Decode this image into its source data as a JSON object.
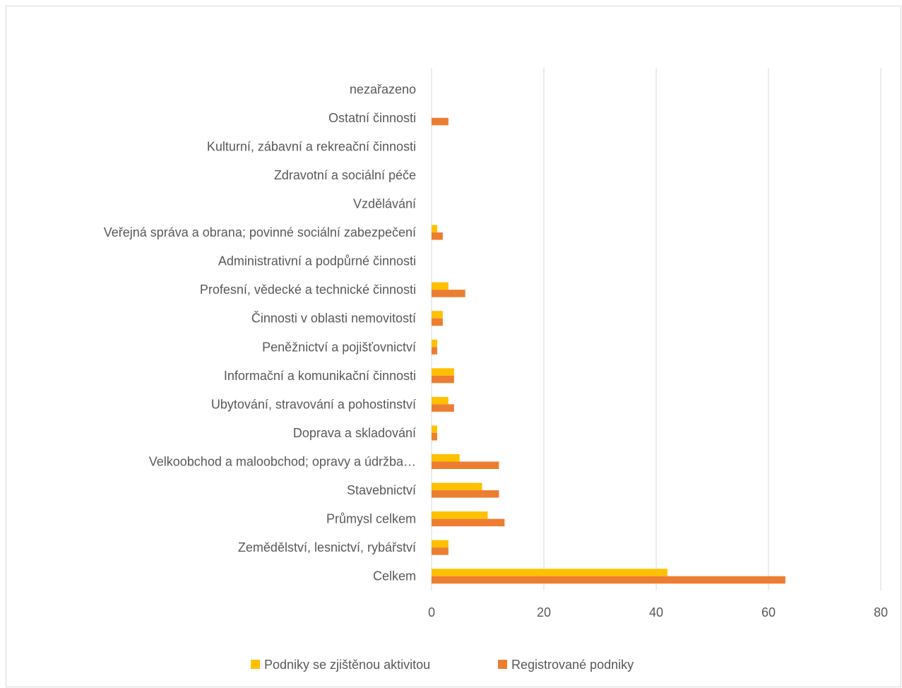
{
  "chart_data": {
    "type": "bar",
    "orientation": "horizontal",
    "categories": [
      "Celkem",
      "Zemědělství, lesnictví, rybářství",
      "Průmysl celkem",
      "Stavebnictví",
      "Velkoobchod a maloobchod; opravy a údržba…",
      "Doprava a skladování",
      "Ubytování, stravování a pohostinství",
      "Informační a komunikační činnosti",
      "Peněžnictví a pojišťovnictví",
      "Činnosti v oblasti nemovitostí",
      "Profesní, vědecké a technické činnosti",
      "Administrativní a podpůrné činnosti",
      "Veřejná správa a obrana; povinné sociální zabezpečení",
      "Vzdělávání",
      "Zdravotní a sociální péče",
      "Kulturní, zábavní a rekreační činnosti",
      "Ostatní činnosti",
      "nezařazeno"
    ],
    "series": [
      {
        "name": "Podniky se zjištěnou aktivitou",
        "color": "#ffc000",
        "values": [
          42,
          3,
          10,
          9,
          5,
          1,
          3,
          4,
          1,
          2,
          3,
          0,
          1,
          0,
          0,
          0,
          0,
          0
        ]
      },
      {
        "name": "Registrované podniky",
        "color": "#ed7d31",
        "values": [
          63,
          3,
          13,
          12,
          12,
          1,
          4,
          4,
          1,
          2,
          6,
          0,
          2,
          0,
          0,
          0,
          3,
          0
        ]
      }
    ],
    "xlim": [
      0,
      80
    ],
    "xticks": [
      0,
      20,
      40,
      60,
      80
    ],
    "xtick_labels": [
      "0",
      "20",
      "40",
      "60",
      "80"
    ],
    "grid": true,
    "legend_position": "bottom"
  }
}
